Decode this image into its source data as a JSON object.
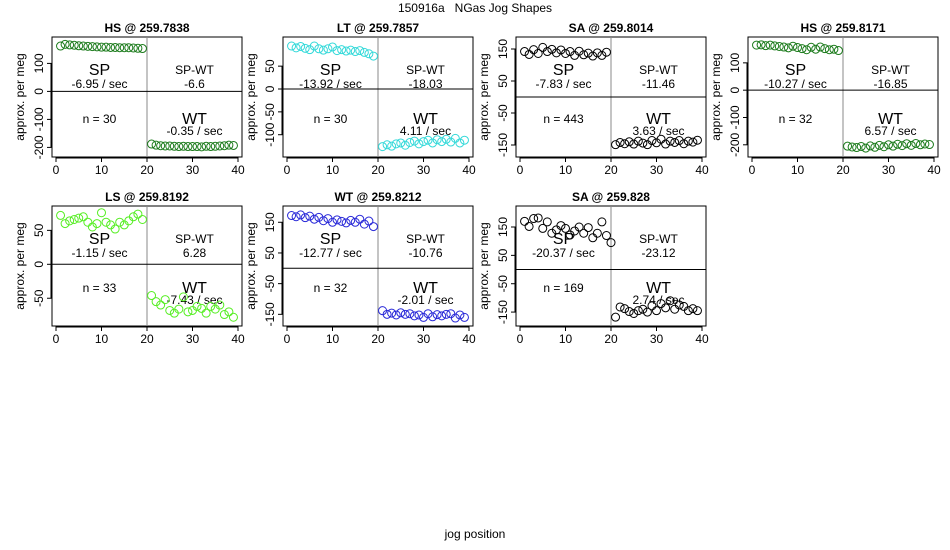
{
  "figure_title": "150916a   NGas Jog Shapes",
  "xlabel": "jog position",
  "chart_data": [
    {
      "type": "scatter",
      "title": "HS @ 259.7838",
      "ylabel": "approx. per meg",
      "color": "#1a7a1a",
      "xlim": [
        0,
        40
      ],
      "ylim": [
        -220,
        180
      ],
      "xticks": [
        0,
        10,
        20,
        30,
        40
      ],
      "yticks": [
        -200,
        -100,
        0,
        100
      ],
      "sp_label": "SP",
      "sp_rate": "-6.95 / sec",
      "spwt_label": "SP-WT",
      "spwt_value": "-6.6",
      "n_label": "n = 30",
      "wt_label": "WT",
      "wt_rate": "-0.35 / sec",
      "x": [
        1,
        2,
        3,
        4,
        5,
        6,
        7,
        8,
        9,
        10,
        11,
        12,
        13,
        14,
        15,
        16,
        17,
        18,
        19,
        21,
        22,
        23,
        24,
        25,
        26,
        27,
        28,
        29,
        30,
        31,
        32,
        33,
        34,
        35,
        36,
        37,
        38,
        39
      ],
      "y": [
        162,
        168,
        166,
        165,
        163,
        162,
        161,
        160,
        159,
        158,
        158,
        157,
        157,
        156,
        156,
        156,
        155,
        154,
        153,
        -188,
        -192,
        -194,
        -195,
        -195,
        -196,
        -197,
        -196,
        -197,
        -197,
        -197,
        -198,
        -196,
        -197,
        -196,
        -195,
        -194,
        -192,
        -193
      ]
    },
    {
      "type": "scatter",
      "title": "LT @ 259.7857",
      "ylabel": "approx. per meg",
      "color": "#33d9d9",
      "xlim": [
        0,
        40
      ],
      "ylim": [
        -140,
        105
      ],
      "xticks": [
        0,
        10,
        20,
        30,
        40
      ],
      "yticks": [
        -100,
        -50,
        0,
        50
      ],
      "sp_label": "SP",
      "sp_rate": "-13.92 / sec",
      "spwt_label": "SP-WT",
      "spwt_value": "-18.03",
      "n_label": "n = 30",
      "wt_label": "WT",
      "wt_rate": "4.11 / sec",
      "x": [
        1,
        2,
        3,
        4,
        5,
        6,
        7,
        8,
        9,
        10,
        11,
        12,
        13,
        14,
        15,
        16,
        17,
        18,
        19,
        21,
        22,
        23,
        24,
        25,
        26,
        27,
        28,
        29,
        30,
        31,
        32,
        33,
        34,
        35,
        36,
        37,
        38,
        39
      ],
      "y": [
        94,
        90,
        93,
        89,
        86,
        94,
        88,
        85,
        88,
        92,
        84,
        86,
        83,
        85,
        82,
        84,
        80,
        77,
        72,
        -126,
        -122,
        -125,
        -120,
        -118,
        -123,
        -117,
        -114,
        -120,
        -115,
        -112,
        -118,
        -111,
        -115,
        -110,
        -116,
        -108,
        -118,
        -112
      ]
    },
    {
      "type": "scatter",
      "title": "SA @ 259.8014",
      "ylabel": "approx. per meg",
      "color": "#000000",
      "xlim": [
        0,
        40
      ],
      "ylim": [
        -175,
        175
      ],
      "xticks": [
        0,
        10,
        20,
        30,
        40
      ],
      "yticks": [
        -150,
        -50,
        50,
        150
      ],
      "sp_label": "SP",
      "sp_rate": "-7.83 / sec",
      "spwt_label": "SP-WT",
      "spwt_value": "-11.46",
      "n_label": "n = 443",
      "wt_label": "WT",
      "wt_rate": "3.63 / sec",
      "x": [
        1,
        2,
        3,
        4,
        5,
        6,
        7,
        8,
        9,
        10,
        11,
        12,
        13,
        14,
        15,
        16,
        17,
        18,
        19,
        21,
        22,
        23,
        24,
        25,
        26,
        27,
        28,
        29,
        30,
        31,
        32,
        33,
        34,
        35,
        36,
        37,
        38,
        39
      ],
      "y": [
        142,
        133,
        148,
        136,
        155,
        142,
        149,
        138,
        147,
        136,
        142,
        130,
        143,
        132,
        137,
        128,
        138,
        130,
        140,
        -149,
        -142,
        -146,
        -140,
        -147,
        -138,
        -144,
        -149,
        -136,
        -143,
        -132,
        -147,
        -138,
        -142,
        -136,
        -146,
        -138,
        -141,
        -135
      ]
    },
    {
      "type": "scatter",
      "title": "HS @ 259.8171",
      "ylabel": "approx. per meg",
      "color": "#1a7a1a",
      "xlim": [
        0,
        40
      ],
      "ylim": [
        -230,
        180
      ],
      "xticks": [
        0,
        10,
        20,
        30,
        40
      ],
      "yticks": [
        -200,
        -100,
        0,
        100
      ],
      "sp_label": "SP",
      "sp_rate": "-10.27 / sec",
      "spwt_label": "SP-WT",
      "spwt_value": "-16.85",
      "n_label": "n = 32",
      "wt_label": "WT",
      "wt_rate": "6.57 / sec",
      "x": [
        1,
        2,
        3,
        4,
        5,
        6,
        7,
        8,
        9,
        10,
        11,
        12,
        13,
        14,
        15,
        16,
        17,
        18,
        19,
        21,
        22,
        23,
        24,
        25,
        26,
        27,
        28,
        29,
        30,
        31,
        32,
        33,
        34,
        35,
        36,
        37,
        38,
        39
      ],
      "y": [
        165,
        166,
        163,
        165,
        162,
        160,
        158,
        155,
        161,
        156,
        152,
        148,
        157,
        150,
        158,
        152,
        148,
        150,
        145,
        -205,
        -208,
        -210,
        -206,
        -212,
        -204,
        -209,
        -202,
        -207,
        -200,
        -205,
        -198,
        -203,
        -196,
        -202,
        -195,
        -200,
        -197,
        -199
      ]
    },
    {
      "type": "scatter",
      "title": "LS @ 259.8192",
      "ylabel": "approx. per meg",
      "color": "#55ee22",
      "xlim": [
        0,
        40
      ],
      "ylim": [
        -85,
        80
      ],
      "xticks": [
        0,
        10,
        20,
        30,
        40
      ],
      "yticks": [
        -50,
        0,
        50
      ],
      "sp_label": "SP",
      "sp_rate": "-1.15 / sec",
      "spwt_label": "SP-WT",
      "spwt_value": "6.28",
      "n_label": "n = 33",
      "wt_label": "WT",
      "wt_rate": "-7.43 / sec",
      "x": [
        1,
        2,
        3,
        4,
        5,
        6,
        7,
        8,
        9,
        10,
        11,
        12,
        13,
        14,
        15,
        16,
        17,
        18,
        19,
        21,
        22,
        23,
        24,
        25,
        26,
        27,
        28,
        29,
        30,
        31,
        32,
        33,
        34,
        35,
        36,
        37,
        38,
        39
      ],
      "y": [
        72,
        60,
        64,
        66,
        68,
        70,
        62,
        55,
        60,
        76,
        62,
        58,
        52,
        62,
        58,
        64,
        70,
        74,
        66,
        -46,
        -55,
        -60,
        -52,
        -68,
        -72,
        -66,
        -48,
        -70,
        -68,
        -62,
        -65,
        -72,
        -62,
        -66,
        -60,
        -74,
        -70,
        -78
      ]
    },
    {
      "type": "scatter",
      "title": "WT @ 259.8212",
      "ylabel": "approx. per meg",
      "color": "#2828d8",
      "xlim": [
        0,
        40
      ],
      "ylim": [
        -175,
        190
      ],
      "xticks": [
        0,
        10,
        20,
        30,
        40
      ],
      "yticks": [
        -150,
        -50,
        50,
        150
      ],
      "sp_label": "SP",
      "sp_rate": "-12.77 / sec",
      "spwt_label": "SP-WT",
      "spwt_value": "-10.76",
      "n_label": "n = 32",
      "wt_label": "WT",
      "wt_rate": "-2.01 / sec",
      "x": [
        1,
        2,
        3,
        4,
        5,
        6,
        7,
        8,
        9,
        10,
        11,
        12,
        13,
        14,
        15,
        16,
        17,
        18,
        19,
        21,
        22,
        23,
        24,
        25,
        26,
        27,
        28,
        29,
        30,
        31,
        32,
        33,
        34,
        35,
        36,
        37,
        38,
        39
      ],
      "y": [
        172,
        168,
        174,
        165,
        170,
        160,
        166,
        155,
        162,
        150,
        158,
        153,
        148,
        156,
        150,
        160,
        144,
        154,
        136,
        -138,
        -150,
        -146,
        -152,
        -145,
        -150,
        -148,
        -155,
        -152,
        -160,
        -148,
        -158,
        -151,
        -155,
        -150,
        -148,
        -162,
        -152,
        -160
      ]
    },
    {
      "type": "scatter",
      "title": "SA @ 259.828",
      "ylabel": "approx. per meg",
      "color": "#000000",
      "xlim": [
        0,
        40
      ],
      "ylim": [
        -185,
        210
      ],
      "xticks": [
        0,
        10,
        20,
        30,
        40
      ],
      "yticks": [
        -150,
        -50,
        50,
        150
      ],
      "sp_label": "SP",
      "sp_rate": "-20.37 / sec",
      "spwt_label": "SP-WT",
      "spwt_value": "-23.12",
      "n_label": "n = 169",
      "wt_label": "WT",
      "wt_rate": "2.74 / sec",
      "x": [
        1,
        2,
        3,
        4,
        5,
        6,
        7,
        8,
        9,
        10,
        11,
        12,
        13,
        14,
        15,
        16,
        17,
        18,
        19,
        20,
        21,
        22,
        23,
        24,
        25,
        26,
        27,
        28,
        29,
        30,
        31,
        32,
        33,
        34,
        35,
        36,
        37,
        38,
        39
      ],
      "y": [
        170,
        152,
        180,
        182,
        145,
        168,
        128,
        140,
        155,
        145,
        122,
        136,
        150,
        128,
        148,
        112,
        128,
        168,
        120,
        95,
        -168,
        -132,
        -138,
        -148,
        -155,
        -145,
        -140,
        -150,
        -128,
        -145,
        -120,
        -135,
        -110,
        -140,
        -125,
        -130,
        -145,
        -138,
        -145
      ]
    }
  ]
}
